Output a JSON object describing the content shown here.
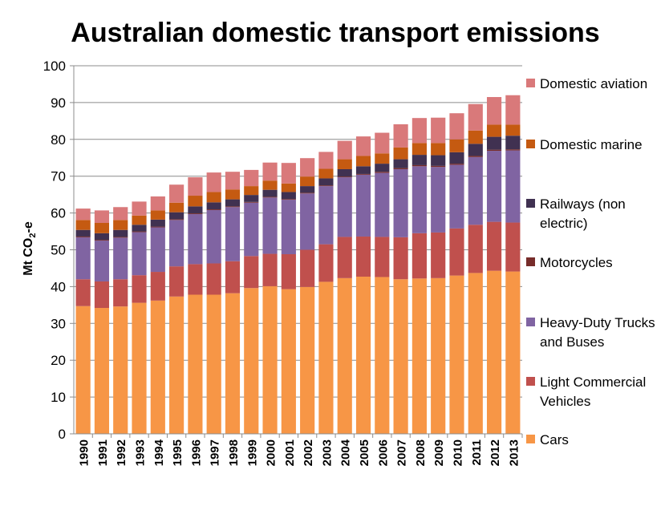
{
  "chart_data": {
    "type": "bar",
    "stacked": true,
    "title": "Australian domestic transport emissions",
    "xlabel": "",
    "ylabel": "Mt CO2-e",
    "ylabel_main": "Mt CO",
    "ylabel_sub": "2",
    "ylabel_suffix": "-e",
    "ylim": [
      0,
      100
    ],
    "yticks": [
      0,
      10,
      20,
      30,
      40,
      50,
      60,
      70,
      80,
      90,
      100
    ],
    "grid": true,
    "legend_position": "right",
    "categories": [
      "1990",
      "1991",
      "1992",
      "1993",
      "1994",
      "1995",
      "1996",
      "1997",
      "1998",
      "1999",
      "2000",
      "2001",
      "2002",
      "2003",
      "2004",
      "2005",
      "2006",
      "2007",
      "2008",
      "2009",
      "2010",
      "2011",
      "2012",
      "2013"
    ],
    "series": [
      {
        "name": "Cars",
        "color": "#f79646",
        "values": [
          34.7,
          34.2,
          34.6,
          35.6,
          36.2,
          37.3,
          37.8,
          37.8,
          38.2,
          39.6,
          40.1,
          39.3,
          39.9,
          41.3,
          42.3,
          42.7,
          42.6,
          42.0,
          42.2,
          42.3,
          43.0,
          43.7,
          44.3,
          44.1
        ]
      },
      {
        "name": "Light Commercial Vehicles",
        "color": "#c0504d",
        "values": [
          7.3,
          7.2,
          7.4,
          7.5,
          7.8,
          8.2,
          8.3,
          8.5,
          8.7,
          8.7,
          8.8,
          9.5,
          10.1,
          10.2,
          11.2,
          10.9,
          10.9,
          11.4,
          12.3,
          12.4,
          12.8,
          13.1,
          13.3,
          13.3
        ]
      },
      {
        "name": "Heavy-Duty Trucks and Buses",
        "color": "#8064a2",
        "values": [
          11.4,
          11.1,
          11.3,
          11.7,
          12.1,
          12.6,
          13.6,
          14.5,
          14.7,
          14.5,
          15.3,
          14.8,
          15.3,
          15.8,
          16.2,
          16.8,
          17.4,
          18.5,
          18.2,
          17.8,
          17.3,
          18.4,
          19.3,
          19.6
        ]
      },
      {
        "name": "Motorcycles",
        "color": "#772c2a",
        "values": [
          0.2,
          0.2,
          0.2,
          0.2,
          0.2,
          0.2,
          0.2,
          0.2,
          0.2,
          0.2,
          0.2,
          0.2,
          0.2,
          0.2,
          0.2,
          0.2,
          0.3,
          0.3,
          0.3,
          0.3,
          0.3,
          0.3,
          0.3,
          0.3
        ]
      },
      {
        "name": "Railways (non electric)",
        "color": "#403151",
        "values": [
          1.8,
          1.8,
          1.9,
          1.8,
          1.9,
          1.9,
          1.9,
          1.9,
          1.9,
          1.9,
          1.9,
          1.9,
          1.8,
          1.9,
          2.0,
          2.1,
          2.2,
          2.4,
          2.8,
          2.9,
          3.1,
          3.3,
          3.5,
          3.7
        ]
      },
      {
        "name": "Domestic marine",
        "color": "#c55a11",
        "values": [
          2.7,
          2.8,
          2.7,
          2.5,
          2.5,
          2.6,
          2.9,
          2.8,
          2.7,
          2.4,
          2.5,
          2.3,
          2.6,
          2.6,
          2.7,
          2.8,
          2.8,
          3.2,
          3.2,
          3.3,
          3.5,
          3.6,
          3.3,
          3.0
        ]
      },
      {
        "name": "Domestic aviation",
        "color": "#d9797a",
        "values": [
          3.1,
          3.4,
          3.5,
          3.8,
          3.8,
          4.9,
          5.0,
          5.3,
          4.8,
          4.4,
          4.9,
          5.6,
          5.0,
          4.6,
          5.0,
          5.3,
          5.6,
          6.3,
          6.8,
          6.9,
          7.1,
          7.2,
          7.5,
          8.0
        ]
      }
    ],
    "legend_order": [
      "Domestic aviation",
      "Domestic marine",
      "Railways (non electric)",
      "Motorcycles",
      "Heavy-Duty Trucks and Buses",
      "Light Commercial Vehicles",
      "Cars"
    ],
    "legend_lines": {
      "Domestic aviation": [
        "Domestic aviation"
      ],
      "Domestic marine": [
        "Domestic marine"
      ],
      "Railways (non electric)": [
        "Railways (non",
        "electric)"
      ],
      "Motorcycles": [
        "Motorcycles"
      ],
      "Heavy-Duty Trucks and Buses": [
        "Heavy-Duty Trucks",
        "and Buses"
      ],
      "Light Commercial Vehicles": [
        "Light Commercial",
        "Vehicles"
      ],
      "Cars": [
        "Cars"
      ]
    }
  }
}
